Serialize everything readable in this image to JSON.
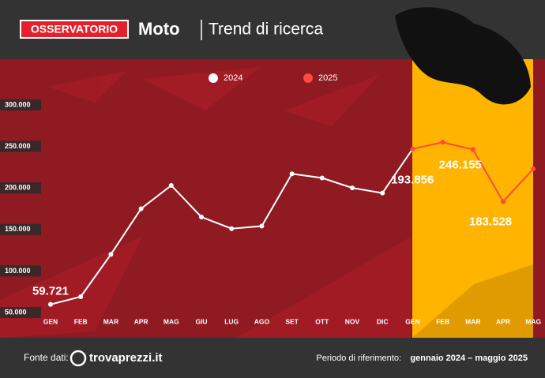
{
  "header": {
    "badge": "OSSERVATORIO",
    "title": "Moto",
    "subtitle": "Trend di ricerca"
  },
  "chart_data": {
    "type": "line",
    "categories": [
      "GEN",
      "FEB",
      "MAR",
      "APR",
      "MAG",
      "GIU",
      "LUG",
      "AGO",
      "SET",
      "OTT",
      "NOV",
      "DIC",
      "GEN",
      "FEB",
      "MAR",
      "APR",
      "MAG"
    ],
    "series": [
      {
        "name": "2024",
        "color": "#ffffff",
        "values": [
          59721,
          69000,
          120000,
          175000,
          203000,
          165000,
          151000,
          154000,
          217000,
          212000,
          200000,
          193856,
          null,
          null,
          null,
          null,
          null
        ],
        "value_labels": [
          "59.721",
          null,
          null,
          null,
          null,
          null,
          null,
          null,
          null,
          null,
          null,
          "193.856",
          null,
          null,
          null,
          null,
          null
        ]
      },
      {
        "name": "2025",
        "color": "#ff4a3d",
        "values": [
          null,
          null,
          null,
          null,
          null,
          null,
          null,
          null,
          null,
          null,
          null,
          null,
          247000,
          255000,
          246155,
          183528,
          223000
        ],
        "value_labels": [
          null,
          null,
          null,
          null,
          null,
          null,
          null,
          null,
          null,
          null,
          null,
          null,
          null,
          null,
          "246.155",
          "183.528",
          null
        ]
      }
    ],
    "ylim": [
      36700,
      355000
    ],
    "yticks": [
      {
        "value": 50000,
        "label": "50.000"
      },
      {
        "value": 100000,
        "label": "100.000"
      },
      {
        "value": 150000,
        "label": "150.000"
      },
      {
        "value": 200000,
        "label": "200.000"
      },
      {
        "value": 250000,
        "label": "250.000"
      },
      {
        "value": 300000,
        "label": "300.000"
      }
    ],
    "highlight_color": "#ffb400"
  },
  "footer": {
    "source_label": "Fonte dati:",
    "brand": "trovaprezzi.it",
    "period_label": "Periodo di riferimento:",
    "period": "gennaio 2024 – maggio 2025"
  }
}
